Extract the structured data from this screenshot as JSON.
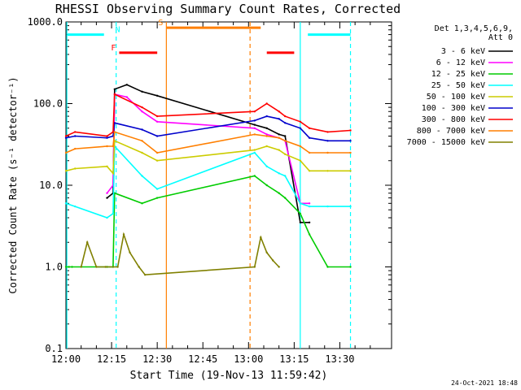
{
  "chart_data": {
    "type": "line",
    "title": "RHESSI Observing Summary Count Rates, Corrected",
    "xlabel": "Start Time (19-Nov-13 11:59:42)",
    "ylabel": "Corrected Count Rate (s⁻¹ detector⁻¹)",
    "xlim": [
      0,
      107
    ],
    "ylim": [
      0.1,
      1000
    ],
    "yscale": "log",
    "xticks": [
      {
        "t": 0,
        "label": "12:00"
      },
      {
        "t": 15,
        "label": "12:15"
      },
      {
        "t": 30,
        "label": "12:30"
      },
      {
        "t": 45,
        "label": "12:45"
      },
      {
        "t": 60,
        "label": "13:00"
      },
      {
        "t": 75,
        "label": "13:15"
      },
      {
        "t": 90,
        "label": "13:30"
      }
    ],
    "yticks": [
      {
        "v": 0.1,
        "label": "0.1"
      },
      {
        "v": 1,
        "label": "1.0"
      },
      {
        "v": 10,
        "label": "10.0"
      },
      {
        "v": 100,
        "label": "100.0"
      },
      {
        "v": 1000,
        "label": "1000.0"
      }
    ],
    "legend_header": [
      "Det 1,3,4,5,6,9,",
      "Att 0"
    ],
    "legend_position": "right",
    "series": [
      {
        "name": "3 - 6 keV",
        "color": "#000000",
        "x": [
          13.5,
          15.5,
          16,
          20,
          25,
          30,
          62,
          66,
          70,
          72,
          77,
          80
        ],
        "y": [
          7,
          8,
          150,
          170,
          140,
          125,
          55,
          50,
          42,
          40,
          3.5,
          3.5
        ]
      },
      {
        "name": "6 - 12 keV",
        "color": "#ff00ff",
        "x": [
          13.5,
          15.5,
          16,
          20,
          25,
          30,
          62,
          66,
          70,
          72,
          77,
          80
        ],
        "y": [
          8,
          10,
          130,
          120,
          80,
          60,
          50,
          42,
          38,
          35,
          6,
          6
        ]
      },
      {
        "name": "12 - 25 keV",
        "color": "#00cc00",
        "x": [
          0,
          1,
          2,
          13.5,
          15.5,
          16,
          25,
          30,
          62,
          66,
          70,
          72,
          77,
          80,
          86,
          93.5
        ],
        "y": [
          1,
          1,
          1,
          1,
          1,
          8,
          6,
          7,
          13,
          10,
          8,
          7,
          4.5,
          2.5,
          1,
          1
        ]
      },
      {
        "name": "25 - 50 keV",
        "color": "#00ffff",
        "x": [
          0,
          3,
          13.5,
          15.5,
          16,
          25,
          30,
          62,
          66,
          70,
          72,
          77,
          80,
          86,
          93.5
        ],
        "y": [
          6,
          5.5,
          4,
          4.5,
          30,
          13,
          9,
          25,
          17,
          14,
          13,
          6,
          5.5,
          5.5,
          5.5
        ]
      },
      {
        "name": "50 - 100 keV",
        "color": "#cccc00",
        "x": [
          0,
          3,
          13.5,
          15.5,
          16,
          25,
          30,
          62,
          66,
          70,
          72,
          77,
          80,
          86,
          93.5
        ],
        "y": [
          15,
          16,
          17,
          14,
          35,
          25,
          20,
          27,
          30,
          27,
          24,
          20,
          15,
          15,
          15
        ]
      },
      {
        "name": "100 - 300 keV",
        "color": "#0000cc",
        "x": [
          0,
          3,
          13.5,
          15.5,
          16,
          25,
          30,
          62,
          66,
          70,
          72,
          77,
          80,
          86,
          93.5
        ],
        "y": [
          38,
          40,
          38,
          40,
          58,
          48,
          40,
          62,
          70,
          65,
          58,
          50,
          38,
          35,
          35
        ]
      },
      {
        "name": "300 - 800 keV",
        "color": "#ff0000",
        "x": [
          0,
          3,
          13.5,
          15.5,
          16,
          25,
          30,
          62,
          66,
          70,
          72,
          77,
          80,
          86,
          93.5
        ],
        "y": [
          40,
          45,
          40,
          45,
          130,
          90,
          70,
          80,
          100,
          80,
          70,
          60,
          50,
          45,
          47
        ]
      },
      {
        "name": "800 - 7000 keV",
        "color": "#ff7f00",
        "x": [
          0,
          3,
          13.5,
          15.5,
          16,
          25,
          30,
          62,
          66,
          70,
          72,
          77,
          80,
          86,
          93.5
        ],
        "y": [
          25,
          28,
          30,
          30,
          45,
          35,
          25,
          42,
          40,
          38,
          35,
          30,
          25,
          25,
          25
        ]
      },
      {
        "name": "7000 - 15000 keV",
        "color": "#808000",
        "x": [
          5,
          7,
          10,
          13,
          17,
          19,
          21,
          24,
          26,
          62,
          64,
          66,
          68,
          70
        ],
        "y": [
          1,
          2,
          1,
          1,
          1,
          2.5,
          1.5,
          1,
          0.8,
          1,
          2.3,
          1.5,
          1.2,
          1
        ]
      }
    ],
    "flag_bars": [
      {
        "label": "",
        "color": "#00ffff",
        "x": [
          0.5,
          12.5
        ],
        "y": 700
      },
      {
        "label": "N",
        "color": "#00ffff",
        "x": [
          17,
          17
        ],
        "y": 700
      },
      {
        "label": "",
        "color": "#00ffff",
        "x": [
          79.5,
          93.5
        ],
        "y": 700
      },
      {
        "label": "S",
        "color": "#ff7f00",
        "x": [
          33,
          64
        ],
        "y": 850
      },
      {
        "label": "F",
        "color": "#ff0000",
        "x": [
          17.5,
          30
        ],
        "y": 420
      },
      {
        "label": "",
        "color": "#ff0000",
        "x": [
          66,
          75
        ],
        "y": 420
      }
    ],
    "vlines": [
      {
        "t": 0.3,
        "color": "#00ffff",
        "style": "solid"
      },
      {
        "t": 16.5,
        "color": "#00ffff",
        "style": "dashed"
      },
      {
        "t": 33,
        "color": "#ff7f00",
        "style": "solid"
      },
      {
        "t": 60.5,
        "color": "#ff7f00",
        "style": "dashed"
      },
      {
        "t": 77,
        "color": "#00ffff",
        "style": "solid"
      },
      {
        "t": 93.5,
        "color": "#00ffff",
        "style": "dashed"
      }
    ]
  },
  "footer_timestamp": "24-Oct-2021 18:48"
}
